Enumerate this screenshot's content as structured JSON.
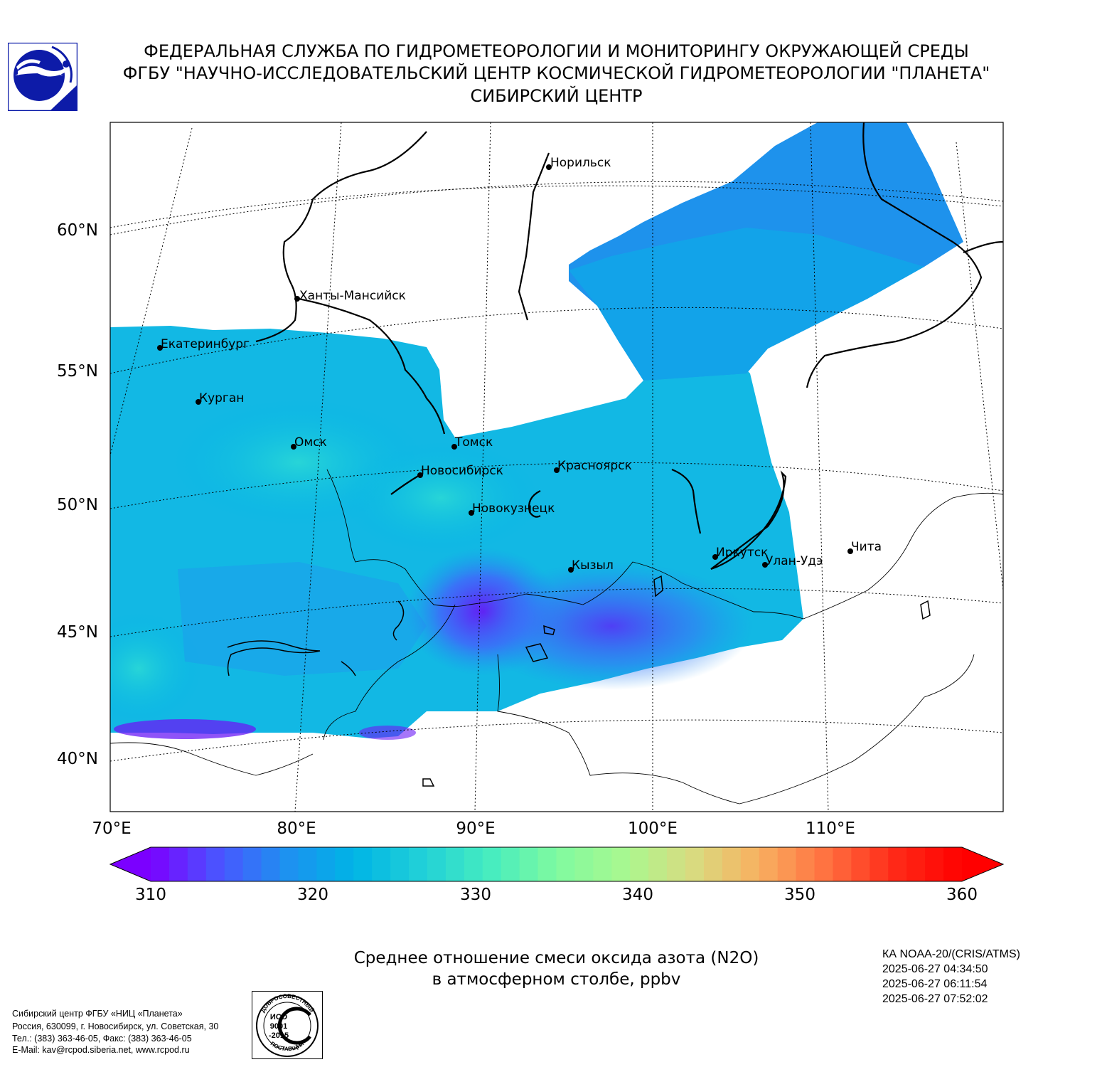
{
  "header": {
    "line1": "ФЕДЕРАЛЬНАЯ СЛУЖБА ПО ГИДРОМЕТЕОРОЛОГИИ И МОНИТОРИНГУ ОКРУЖАЮЩЕЙ СРЕДЫ",
    "line2": "ФГБУ \"НАУЧНО-ИССЛЕДОВАТЕЛЬСКИЙ ЦЕНТР КОСМИЧЕСКОЙ ГИДРОМЕТЕОРОЛОГИИ \"ПЛАНЕТА\"",
    "line3": "СИБИРСКИЙ ЦЕНТР",
    "logo_icon": "planeta-logo-icon"
  },
  "map": {
    "lat_labels": [
      "60°N",
      "55°N",
      "50°N",
      "45°N",
      "40°N"
    ],
    "lon_labels": [
      "70°E",
      "80°E",
      "90°E",
      "100°E",
      "110°E"
    ],
    "cities": [
      {
        "name": "Норильск"
      },
      {
        "name": "Ханты-Мансийск"
      },
      {
        "name": "Екатеринбург"
      },
      {
        "name": "Курган"
      },
      {
        "name": "Омск"
      },
      {
        "name": "Томск"
      },
      {
        "name": "Новосибирск"
      },
      {
        "name": "Красноярск"
      },
      {
        "name": "Новокузнецк"
      },
      {
        "name": "Кызыл"
      },
      {
        "name": "Иркутск"
      },
      {
        "name": "Улан-Удэ"
      },
      {
        "name": "Чита"
      }
    ],
    "colors": {
      "low": "#7b00ff",
      "mid": "#00b4e6",
      "high": "#ff0000"
    }
  },
  "colorbar": {
    "min": 310,
    "max": 360,
    "ticks": [
      "310",
      "320",
      "330",
      "340",
      "350",
      "360"
    ],
    "colors": [
      "#7b00ff",
      "#4a55ff",
      "#1e90f0",
      "#00b4e6",
      "#20d0d8",
      "#45ecc0",
      "#7ffaa0",
      "#a8f890",
      "#d8dc80",
      "#f8b060",
      "#ff7040",
      "#ff2a18",
      "#ff0000"
    ]
  },
  "caption": {
    "line1": "Среднее отношение смеси оксида азота (N2O)",
    "line2": "в атмосферном столбе, ppbv"
  },
  "satellite": {
    "name": "КА NOAA-20/(CRIS/ATMS)",
    "times": [
      "2025-06-27 04:34:50",
      "2025-06-27 06:11:54",
      "2025-06-27 07:52:02"
    ]
  },
  "contact": {
    "line1": "Сибирский центр ФГБУ «НИЦ «Планета»",
    "line2": "Россия, 630099, г. Новосибирск, ул. Советская, 30",
    "line3": "Тел.: (383) 363-46-05, Факс: (383) 363-46-05",
    "line4": "E-Mail: kav@rcpod.siberia.net, www.rcpod.ru"
  },
  "iso_badge": {
    "top_text": "ДОБРОСОВЕСТНЫЙ",
    "line1": "ИСО",
    "line2": "9001",
    "line3": "-2015",
    "bottom_text": "ПОСТАВЩИК"
  }
}
